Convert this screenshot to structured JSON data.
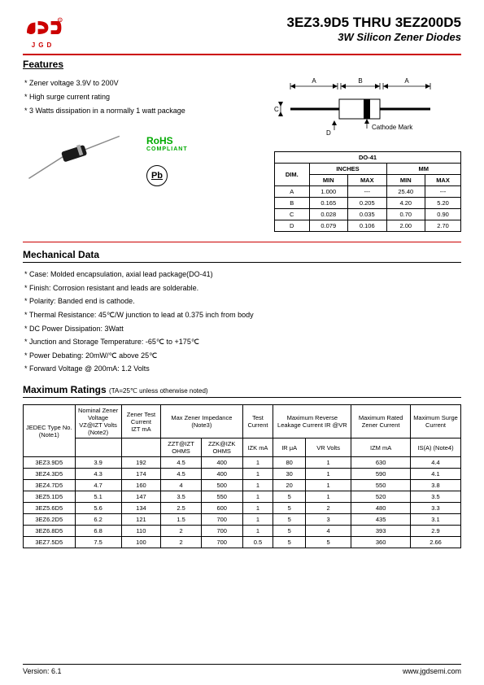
{
  "logo_letters": "JGD",
  "title_main": "3EZ3.9D5 THRU 3EZ200D5",
  "title_sub": "3W Silicon Zener Diodes",
  "section_features": "Features",
  "features": [
    "* Zener voltage 3.9V to 200V",
    "* High surge current rating",
    "* 3 Watts dissipation in a normally 1 watt package"
  ],
  "rohs": "RoHS",
  "rohs_sub": "COMPLIANT",
  "pb": "Pb",
  "cathode_mark": "Cathode Mark",
  "dim_header": "DO-41",
  "dim_cols": {
    "dim": "DIM.",
    "inches": "INCHES",
    "mm": "MM",
    "min": "MIN",
    "max": "MAX"
  },
  "dim_rows": [
    {
      "d": "A",
      "imin": "1.000",
      "imax": "---",
      "mmin": "25.40",
      "mmax": "---"
    },
    {
      "d": "B",
      "imin": "0.165",
      "imax": "0.205",
      "mmin": "4.20",
      "mmax": "5.20"
    },
    {
      "d": "C",
      "imin": "0.028",
      "imax": "0.035",
      "mmin": "0.70",
      "mmax": "0.90"
    },
    {
      "d": "D",
      "imin": "0.079",
      "imax": "0.106",
      "mmin": "2.00",
      "mmax": "2.70"
    }
  ],
  "section_mech": "Mechanical Data",
  "mech": [
    "* Case: Molded encapsulation, axial lead package(DO-41)",
    "* Finish: Corrosion resistant and leads are solderable.",
    "* Polarity: Banded end is cathode.",
    "* Thermal Resistance: 45℃/W junction to lead at 0.375 inch from body",
    "* DC Power Dissipation: 3Watt",
    "* Junction and Storage Temperature: -65℃ to +175℃",
    "* Power Debating: 20mW/℃ above 25℃",
    "* Forward Voltage @ 200mA: 1.2 Volts"
  ],
  "section_ratings": "Maximum Ratings",
  "ratings_note": "(TA=25℃ unless otherwise noted)",
  "ratings_headers": {
    "c1": "JEDEC Type No. (Note1)",
    "c2a": "Nominal Zener Voltage",
    "c2b": "VZ@IZT Volts (Note2)",
    "c3a": "Zener Test Current",
    "c3b": "IZT mA",
    "c4": "Max Zener Impedance (Note3)",
    "c4a": "ZZT@IZT OHMS",
    "c4b": "ZZK@IZK OHMS",
    "c5": "Test Current",
    "c5a": "IZK mA",
    "c6": "Maximum Reverse Leakage Current IR @VR",
    "c6a": "IR μA",
    "c6b": "VR Volts",
    "c7": "Maximum Rated Zener Current",
    "c7a": "IZM mA",
    "c8": "Maximum Surge Current",
    "c8a": "IS(A) (Note4)"
  },
  "ratings_rows": [
    [
      "3EZ3.9D5",
      "3.9",
      "192",
      "4.5",
      "400",
      "1",
      "80",
      "1",
      "630",
      "4.4"
    ],
    [
      "3EZ4.3D5",
      "4.3",
      "174",
      "4.5",
      "400",
      "1",
      "30",
      "1",
      "590",
      "4.1"
    ],
    [
      "3EZ4.7D5",
      "4.7",
      "160",
      "4",
      "500",
      "1",
      "20",
      "1",
      "550",
      "3.8"
    ],
    [
      "3EZ5.1D5",
      "5.1",
      "147",
      "3.5",
      "550",
      "1",
      "5",
      "1",
      "520",
      "3.5"
    ],
    [
      "3EZ5.6D5",
      "5.6",
      "134",
      "2.5",
      "600",
      "1",
      "5",
      "2",
      "480",
      "3.3"
    ],
    [
      "3EZ6.2D5",
      "6.2",
      "121",
      "1.5",
      "700",
      "1",
      "5",
      "3",
      "435",
      "3.1"
    ],
    [
      "3EZ6.8D5",
      "6.8",
      "110",
      "2",
      "700",
      "1",
      "5",
      "4",
      "393",
      "2.9"
    ],
    [
      "3EZ7.5D5",
      "7.5",
      "100",
      "2",
      "700",
      "0.5",
      "5",
      "5",
      "360",
      "2.66"
    ]
  ],
  "footer_version": "Version: 6.1",
  "footer_url": "www.jgdsemi.com"
}
